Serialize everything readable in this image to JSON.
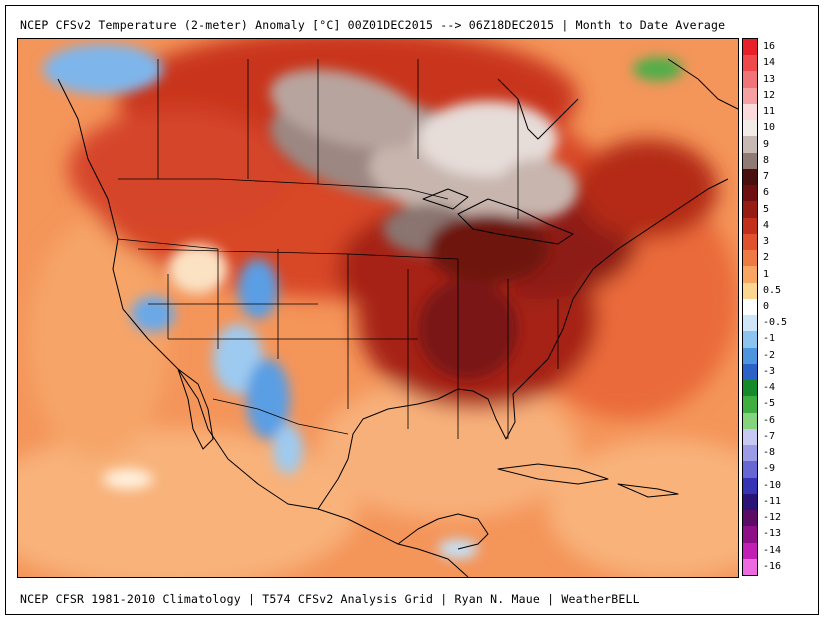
{
  "header": {
    "title": "NCEP CFSv2 Temperature (2-meter) Anomaly  [°C] 00Z01DEC2015 --> 06Z18DEC2015 | Month to Date Average"
  },
  "footer": {
    "credits": "NCEP CFSR 1981-2010 Climatology | T574 CFSv2 Analysis Grid | Ryan N. Maue | WeatherBELL"
  },
  "legend": {
    "entries": [
      {
        "label": "16",
        "color": "#e8202a"
      },
      {
        "label": "14",
        "color": "#ee4a4e"
      },
      {
        "label": "13",
        "color": "#f07478"
      },
      {
        "label": "12",
        "color": "#f5a0a2"
      },
      {
        "label": "11",
        "color": "#fadadb"
      },
      {
        "label": "10",
        "color": "#f2ece9"
      },
      {
        "label": "9",
        "color": "#c8b8b3"
      },
      {
        "label": "8",
        "color": "#8f7a74"
      },
      {
        "label": "7",
        "color": "#4a1010"
      },
      {
        "label": "6",
        "color": "#6e1010"
      },
      {
        "label": "5",
        "color": "#961c14"
      },
      {
        "label": "4",
        "color": "#c2301c"
      },
      {
        "label": "3",
        "color": "#e0522e"
      },
      {
        "label": "2",
        "color": "#f07a44"
      },
      {
        "label": "1",
        "color": "#f8a662"
      },
      {
        "label": "0.5",
        "color": "#fcd690"
      },
      {
        "label": "0",
        "color": "#ffffff"
      },
      {
        "label": "-0.5",
        "color": "#cfe6f8"
      },
      {
        "label": "-1",
        "color": "#8cc4ef"
      },
      {
        "label": "-2",
        "color": "#4c96e0"
      },
      {
        "label": "-3",
        "color": "#2a62c8"
      },
      {
        "label": "-4",
        "color": "#168a2a"
      },
      {
        "label": "-5",
        "color": "#3fae40"
      },
      {
        "label": "-6",
        "color": "#84d47e"
      },
      {
        "label": "-7",
        "color": "#c8c8f0"
      },
      {
        "label": "-8",
        "color": "#9c9ce6"
      },
      {
        "label": "-9",
        "color": "#6868d4"
      },
      {
        "label": "-10",
        "color": "#3434b4"
      },
      {
        "label": "-11",
        "color": "#2a1478"
      },
      {
        "label": "-12",
        "color": "#5c0c64"
      },
      {
        "label": "-13",
        "color": "#8e1088"
      },
      {
        "label": "-14",
        "color": "#c020b4"
      },
      {
        "label": "-16",
        "color": "#ee6ae0"
      }
    ]
  }
}
